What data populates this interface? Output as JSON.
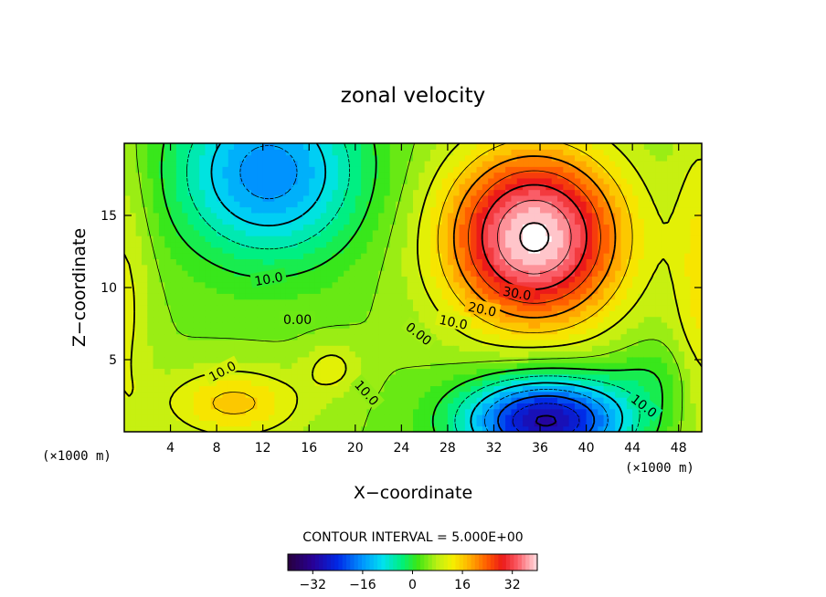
{
  "chart_data": {
    "type": "heatmap",
    "title": "zonal velocity",
    "xlabel": "X−coordinate",
    "ylabel": "Z−coordinate",
    "x_unit": "(×1000 m)",
    "y_unit": "(×1000 m)",
    "xlim": [
      0,
      50
    ],
    "ylim": [
      0,
      20
    ],
    "x_ticks": [
      4,
      8,
      12,
      16,
      20,
      24,
      28,
      32,
      36,
      40,
      44,
      48
    ],
    "y_ticks": [
      5,
      10,
      15
    ],
    "x_tick_labels": [
      "4",
      "8",
      "12",
      "16",
      "20",
      "24",
      "28",
      "32",
      "36",
      "40",
      "44",
      "48"
    ],
    "y_tick_labels": [
      "5",
      "10",
      "15"
    ],
    "contour_interval_text": "CONTOUR INTERVAL = 5.000E+00",
    "contour_interval": 5,
    "colorbar": {
      "range": [
        -40,
        40
      ],
      "ticks": [
        -32,
        -16,
        0,
        16,
        32
      ],
      "tick_labels": [
        "−32",
        "−16",
        "0",
        "16",
        "32"
      ]
    },
    "contour_labels": [
      {
        "text": "10.0",
        "x": 12.5,
        "z": 10.6,
        "angle": -10
      },
      {
        "text": "0.00",
        "x": 15.0,
        "z": 7.8,
        "angle": 0
      },
      {
        "text": "10.0",
        "x": 8.5,
        "z": 4.2,
        "angle": -28
      },
      {
        "text": "10.0",
        "x": 21.0,
        "z": 2.7,
        "angle": 48
      },
      {
        "text": "0.00",
        "x": 25.5,
        "z": 6.8,
        "angle": 38
      },
      {
        "text": "10.0",
        "x": 28.5,
        "z": 7.6,
        "angle": 12
      },
      {
        "text": "20.0",
        "x": 31.0,
        "z": 8.5,
        "angle": 12
      },
      {
        "text": "30.0",
        "x": 34.0,
        "z": 9.6,
        "angle": 10
      },
      {
        "text": "10.0",
        "x": 45.0,
        "z": 1.8,
        "angle": 38
      }
    ],
    "features": [
      {
        "kind": "max",
        "x": 35.5,
        "z": 12.5,
        "approx_value": 42
      },
      {
        "kind": "min",
        "x": 36.0,
        "z": 1.2,
        "approx_value": -30
      },
      {
        "kind": "min",
        "x": 12.5,
        "z": 18.5,
        "approx_value": -17
      },
      {
        "kind": "max",
        "x": 9.5,
        "z": 2.0,
        "approx_value": 15
      },
      {
        "kind": "max",
        "x": 18.0,
        "z": 4.5,
        "approx_value": 11
      }
    ],
    "grid": false,
    "legend": "bottom"
  }
}
